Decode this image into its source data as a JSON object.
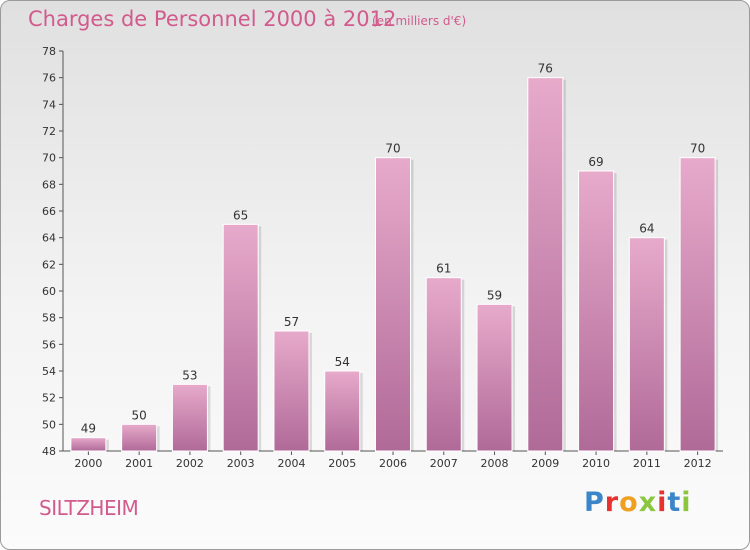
{
  "title": "Charges de Personnel 2000 à 2012",
  "subtitle": "(en milliers d'€)",
  "commune": "SILTZHEIM",
  "logo": {
    "letters": [
      "P",
      "r",
      "o",
      "x",
      "i",
      "t",
      "i"
    ],
    "colors": [
      "#3a86c8",
      "#e8322f",
      "#f0a020",
      "#8cc63f",
      "#e8322f",
      "#3a86c8",
      "#8cc63f"
    ]
  },
  "colors": {
    "bar_top": "#e7aacb",
    "bar_bottom": "#b06a98",
    "accent": "#d25a8c"
  },
  "chart_data": {
    "type": "bar",
    "title": "Charges de Personnel 2000 à 2012",
    "subtitle": "(en milliers d'€)",
    "categories": [
      "2000",
      "2001",
      "2002",
      "2003",
      "2004",
      "2005",
      "2006",
      "2007",
      "2008",
      "2009",
      "2010",
      "2011",
      "2012"
    ],
    "values": [
      49,
      50,
      53,
      65,
      57,
      54,
      70,
      61,
      59,
      76,
      69,
      64,
      70
    ],
    "ylim": [
      48,
      78
    ],
    "yticks": [
      "48",
      "50",
      "52",
      "54",
      "56",
      "58",
      "60",
      "62",
      "64",
      "66",
      "68",
      "70",
      "72",
      "74",
      "76",
      "78"
    ],
    "grid": false,
    "data_labels": true
  }
}
